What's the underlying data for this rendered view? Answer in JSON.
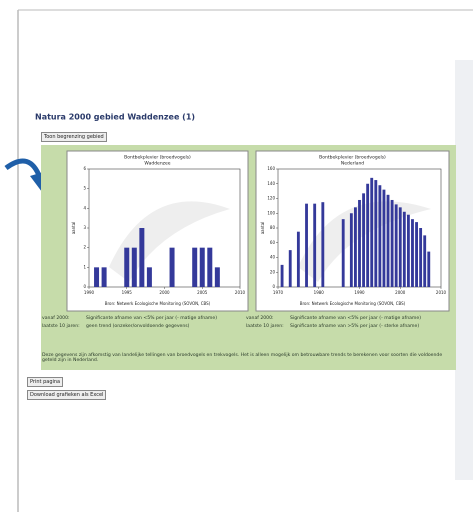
{
  "header": {
    "title": "Natura 2000 gebied Waddenzee (1)"
  },
  "buttons": {
    "show_area": "Toon begrenzing gebied",
    "print": "Print pagina",
    "download": "Download grafieken als Excel"
  },
  "chart_data": [
    {
      "type": "bar",
      "title": "Bontbekplevier (broedvogels)",
      "subtitle": "Waddenzee",
      "ylabel": "aantal",
      "x": [
        1991,
        1992,
        1995,
        1996,
        1997,
        1998,
        2001,
        2004,
        2005,
        2006,
        2007
      ],
      "values": [
        1,
        1,
        2,
        2,
        3,
        1,
        2,
        2,
        2,
        2,
        1
      ],
      "color": "#34399a",
      "xlim": [
        1990,
        2010
      ],
      "xticks": [
        1990,
        1995,
        2000,
        2005,
        2010
      ],
      "ylim": [
        0,
        6
      ],
      "yticks": [
        0,
        1,
        2,
        3,
        4,
        5,
        6
      ],
      "source": "Bron: Netwerk Ecologische Monitoring (SOVON, CBS)"
    },
    {
      "type": "bar",
      "title": "Bontbekplevier (broedvogels)",
      "subtitle": "Nederland",
      "ylabel": "aantal",
      "x": [
        1971,
        1973,
        1975,
        1977,
        1979,
        1981,
        1986,
        1988,
        1989,
        1990,
        1991,
        1992,
        1993,
        1994,
        1995,
        1996,
        1997,
        1998,
        1999,
        2000,
        2001,
        2002,
        2003,
        2004,
        2005,
        2006,
        2007
      ],
      "values": [
        30,
        50,
        75,
        113,
        113,
        115,
        92,
        100,
        108,
        118,
        127,
        140,
        148,
        145,
        138,
        132,
        125,
        118,
        112,
        108,
        102,
        98,
        92,
        88,
        80,
        70,
        48
      ],
      "color": "#34399a",
      "xlim": [
        1970,
        2010
      ],
      "xticks": [
        1970,
        1980,
        1990,
        2000,
        2010
      ],
      "ylim": [
        0,
        160
      ],
      "yticks": [
        0,
        20,
        40,
        60,
        80,
        100,
        120,
        140,
        160
      ],
      "source": "Bron: Netwerk Ecologische Monitoring (SOVON, CBS)"
    }
  ],
  "table": {
    "rows": [
      [
        "vanaf 2000:",
        "Significante afname van <5% per jaar (- matige afname)",
        "vanaf 2000:",
        "Significante afname van <5% per jaar (- matige afname)"
      ],
      [
        "laatste 10 jaren:",
        "geen trend (onzeker/onvoldoende gegevens)",
        "laatste 10 jaren:",
        "Significante afname van >5% per jaar (- sterke afname)"
      ]
    ]
  },
  "note": "Deze gegevens zijn afkomstig van landelijke tellingen van broedvogels en trekvogels. Het is alleen mogelijk om betrouwbare trends te berekenen voor soorten die voldoende geteld zijn in Nederland."
}
